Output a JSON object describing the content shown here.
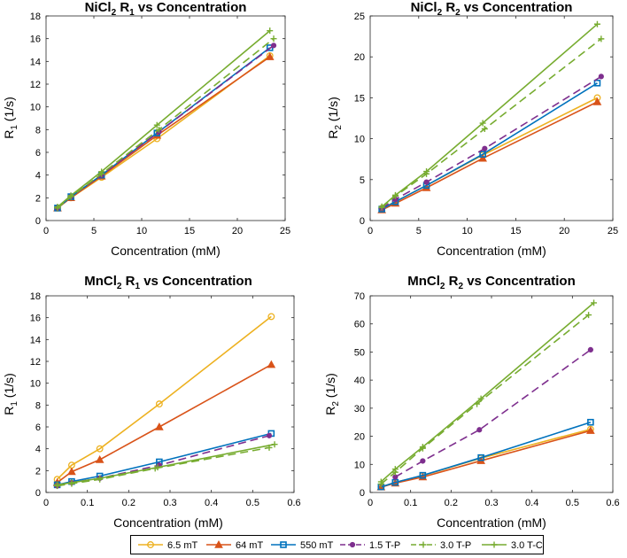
{
  "colors": {
    "s65": "#edb120",
    "s64": "#d95319",
    "s550": "#0072bd",
    "s15": "#7e2f8e",
    "s30p": "#77ac30",
    "s30c": "#77ac30"
  },
  "legend": [
    {
      "label": "6.5 mT",
      "key": "s65",
      "marker": "circle",
      "dash": false
    },
    {
      "label": "64 mT",
      "key": "s64",
      "marker": "triangle",
      "dash": false
    },
    {
      "label": "550 mT",
      "key": "s550",
      "marker": "square",
      "dash": false
    },
    {
      "label": "1.5 T-P",
      "key": "s15",
      "marker": "dot",
      "dash": true
    },
    {
      "label": "3.0 T-P",
      "key": "s30p",
      "marker": "plus",
      "dash": true
    },
    {
      "label": "3.0 T-C",
      "key": "s30c",
      "marker": "plus",
      "dash": false
    }
  ],
  "chart_data": [
    {
      "type": "line",
      "title": {
        "main": "NiCl",
        "sub": "2",
        "main2": " R",
        "sub2": "1",
        "rest": " vs Concentration"
      },
      "xlabel": "Concentration (mM)",
      "ylabel": {
        "main": "R",
        "sub": "1",
        "rest": " (1/s)"
      },
      "xlim": [
        0,
        25
      ],
      "ylim": [
        0,
        18
      ],
      "xticks": [
        "0",
        "5",
        "10",
        "15",
        "20",
        "25"
      ],
      "yticks": [
        "0",
        "2",
        "4",
        "6",
        "8",
        "10",
        "12",
        "14",
        "16",
        "18"
      ],
      "series": [
        {
          "name": "6.5 mT",
          "x": [
            1.2,
            2.6,
            5.8,
            11.6,
            23.4
          ],
          "y": [
            1.1,
            2.0,
            3.8,
            7.2,
            14.5
          ]
        },
        {
          "name": "64 mT",
          "x": [
            1.2,
            2.6,
            5.8,
            11.6,
            23.4
          ],
          "y": [
            1.1,
            2.0,
            3.9,
            7.5,
            14.4
          ]
        },
        {
          "name": "550 mT",
          "x": [
            1.2,
            2.6,
            5.8,
            11.6,
            23.4
          ],
          "y": [
            1.1,
            2.1,
            4.0,
            7.7,
            15.2
          ]
        },
        {
          "name": "1.5 T-P",
          "x": [
            1.2,
            2.6,
            5.8,
            11.8,
            23.8
          ],
          "y": [
            1.1,
            2.1,
            4.0,
            7.8,
            15.4
          ]
        },
        {
          "name": "3.0 T-P",
          "x": [
            1.2,
            2.6,
            5.8,
            11.8,
            23.8
          ],
          "y": [
            1.1,
            2.1,
            4.1,
            8.0,
            16.0
          ]
        },
        {
          "name": "3.0 T-C",
          "x": [
            1.2,
            2.6,
            5.8,
            11.6,
            23.4
          ],
          "y": [
            1.2,
            2.2,
            4.3,
            8.4,
            16.7
          ]
        }
      ]
    },
    {
      "type": "line",
      "title": {
        "main": "NiCl",
        "sub": "2",
        "main2": " R",
        "sub2": "2",
        "rest": " vs Concentration"
      },
      "xlabel": "Concentration (mM)",
      "ylabel": {
        "main": "R",
        "sub": "2",
        "rest": " (1/s)"
      },
      "xlim": [
        0,
        25
      ],
      "ylim": [
        0,
        25
      ],
      "xticks": [
        "0",
        "5",
        "10",
        "15",
        "20",
        "25"
      ],
      "yticks": [
        "0",
        "5",
        "10",
        "15",
        "20",
        "25"
      ],
      "series": [
        {
          "name": "6.5 mT",
          "x": [
            1.2,
            2.6,
            5.8,
            11.6,
            23.4
          ],
          "y": [
            1.5,
            2.3,
            4.3,
            8.0,
            15.0
          ]
        },
        {
          "name": "64 mT",
          "x": [
            1.2,
            2.6,
            5.8,
            11.6,
            23.4
          ],
          "y": [
            1.3,
            2.1,
            4.0,
            7.6,
            14.5
          ]
        },
        {
          "name": "550 mT",
          "x": [
            1.2,
            2.6,
            5.8,
            11.6,
            23.4
          ],
          "y": [
            1.4,
            2.3,
            4.3,
            8.1,
            16.8
          ]
        },
        {
          "name": "1.5 T-P",
          "x": [
            1.2,
            2.6,
            5.8,
            11.8,
            23.8
          ],
          "y": [
            1.5,
            2.6,
            4.7,
            8.8,
            17.6
          ]
        },
        {
          "name": "3.0 T-P",
          "x": [
            1.2,
            2.6,
            5.8,
            11.8,
            23.8
          ],
          "y": [
            1.6,
            3.0,
            5.7,
            11.2,
            22.2
          ]
        },
        {
          "name": "3.0 T-C",
          "x": [
            1.2,
            2.6,
            5.8,
            11.6,
            23.4
          ],
          "y": [
            1.7,
            3.1,
            6.0,
            11.9,
            24.0
          ]
        }
      ]
    },
    {
      "type": "line",
      "title": {
        "main": "MnCl",
        "sub": "2",
        "main2": " R",
        "sub2": "1",
        "rest": " vs Concentration"
      },
      "xlabel": "Concentration (mM)",
      "ylabel": {
        "main": "R",
        "sub": "1",
        "rest": " (1/s)"
      },
      "xlim": [
        0,
        0.6
      ],
      "ylim": [
        0,
        18
      ],
      "xticks": [
        "0",
        "0.1",
        "0.2",
        "0.3",
        "0.4",
        "0.5",
        "0.6"
      ],
      "yticks": [
        "0",
        "2",
        "4",
        "6",
        "8",
        "10",
        "12",
        "14",
        "16",
        "18"
      ],
      "series": [
        {
          "name": "6.5 mT",
          "x": [
            0.027,
            0.062,
            0.13,
            0.274,
            0.545
          ],
          "y": [
            1.2,
            2.5,
            4.0,
            8.1,
            16.1
          ]
        },
        {
          "name": "64 mT",
          "x": [
            0.027,
            0.062,
            0.13,
            0.274,
            0.545
          ],
          "y": [
            0.9,
            1.9,
            3.0,
            6.0,
            11.7
          ]
        },
        {
          "name": "550 mT",
          "x": [
            0.027,
            0.062,
            0.13,
            0.274,
            0.545
          ],
          "y": [
            0.7,
            1.0,
            1.5,
            2.8,
            5.4
          ]
        },
        {
          "name": "1.5 T-P",
          "x": [
            0.027,
            0.062,
            0.13,
            0.274,
            0.54
          ],
          "y": [
            0.6,
            0.9,
            1.3,
            2.5,
            5.2
          ]
        },
        {
          "name": "3.0 T-P",
          "x": [
            0.027,
            0.062,
            0.13,
            0.264,
            0.54
          ],
          "y": [
            0.6,
            0.8,
            1.2,
            2.2,
            4.1
          ]
        },
        {
          "name": "3.0 T-C",
          "x": [
            0.027,
            0.062,
            0.13,
            0.27,
            0.553
          ],
          "y": [
            0.7,
            0.9,
            1.3,
            2.3,
            4.4
          ]
        }
      ]
    },
    {
      "type": "line",
      "title": {
        "main": "MnCl",
        "sub": "2",
        "main2": " R",
        "sub2": "2",
        "rest": " vs Concentration"
      },
      "xlabel": "Concentration (mM)",
      "ylabel": {
        "main": "R",
        "sub": "2",
        "rest": " (1/s)"
      },
      "xlim": [
        0,
        0.6
      ],
      "ylim": [
        0,
        70
      ],
      "xticks": [
        "0",
        "0.1",
        "0.2",
        "0.3",
        "0.4",
        "0.5",
        "0.6"
      ],
      "yticks": [
        "0",
        "10",
        "20",
        "30",
        "40",
        "50",
        "60",
        "70"
      ],
      "series": [
        {
          "name": "6.5 mT",
          "x": [
            0.027,
            0.062,
            0.13,
            0.274,
            0.545
          ],
          "y": [
            2.0,
            3.6,
            6.0,
            12.2,
            22.5
          ]
        },
        {
          "name": "64 mT",
          "x": [
            0.027,
            0.062,
            0.13,
            0.274,
            0.545
          ],
          "y": [
            1.9,
            3.3,
            5.5,
            11.3,
            22.0
          ]
        },
        {
          "name": "550 mT",
          "x": [
            0.027,
            0.062,
            0.13,
            0.274,
            0.545
          ],
          "y": [
            2.0,
            3.6,
            6.1,
            12.4,
            25.0
          ]
        },
        {
          "name": "1.5 T-P",
          "x": [
            0.062,
            0.13,
            0.27,
            0.545
          ],
          "y": [
            5.5,
            11.2,
            22.3,
            50.8
          ]
        },
        {
          "name": "3.0 T-P",
          "x": [
            0.027,
            0.062,
            0.13,
            0.264,
            0.54
          ],
          "y": [
            3.0,
            7.2,
            15.7,
            31.5,
            63.2
          ]
        },
        {
          "name": "3.0 T-C",
          "x": [
            0.027,
            0.062,
            0.13,
            0.274,
            0.553
          ],
          "y": [
            3.8,
            8.3,
            16.2,
            33.4,
            67.5
          ]
        }
      ]
    }
  ]
}
